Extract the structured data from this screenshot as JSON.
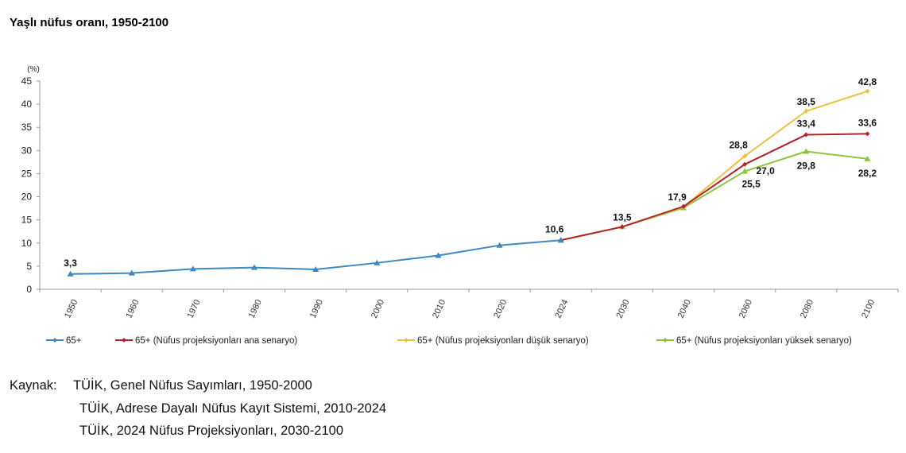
{
  "title": "Yaşlı nüfus oranı, 1950-2100",
  "chart_data": {
    "type": "line",
    "title": "Yaşlı nüfus oranı, 1950-2100",
    "ylabel": "(%)",
    "ylim": [
      0,
      45
    ],
    "yticks": [
      0,
      5,
      10,
      15,
      20,
      25,
      30,
      35,
      40,
      45
    ],
    "categories": [
      "1950",
      "1960",
      "1970",
      "1980",
      "1990",
      "2000",
      "2010",
      "2020",
      "2024",
      "2030",
      "2040",
      "2060",
      "2080",
      "2100"
    ],
    "grid": false,
    "legend_position": "bottom",
    "series": [
      {
        "name": "65+",
        "color": "#3d87c4",
        "marker": "triangle",
        "values": [
          3.3,
          3.5,
          4.4,
          4.7,
          4.3,
          5.7,
          7.3,
          9.5,
          10.6,
          null,
          null,
          null,
          null,
          null
        ],
        "labels": {
          "0": "3,3",
          "8": "10,6"
        }
      },
      {
        "name": "65+ (Nüfus projeksiyonları ana senaryo)",
        "color": "#b0242c",
        "marker": "diamond",
        "values": [
          null,
          null,
          null,
          null,
          null,
          null,
          null,
          null,
          10.6,
          13.5,
          17.9,
          27.0,
          33.4,
          33.6
        ],
        "labels": {
          "9": "13,5",
          "10": "17,9",
          "11": "27,0",
          "12": "33,4",
          "13": "33,6"
        }
      },
      {
        "name": "65+ (Nüfus projeksiyonları düşük senaryo)",
        "color": "#f2c040",
        "marker": "diamond",
        "values": [
          null,
          null,
          null,
          null,
          null,
          null,
          null,
          null,
          10.6,
          13.5,
          17.8,
          28.8,
          38.5,
          42.8
        ],
        "labels": {
          "11": "28,8",
          "12": "38,5",
          "13": "42,8"
        }
      },
      {
        "name": "65+ (Nüfus projeksiyonları yüksek senaryo)",
        "color": "#8cc43c",
        "marker": "triangle",
        "values": [
          null,
          null,
          null,
          null,
          null,
          null,
          null,
          null,
          10.6,
          13.5,
          17.6,
          25.5,
          29.8,
          28.2
        ],
        "labels": {
          "11": "25,5",
          "12": "29,8",
          "13": "28,2"
        }
      }
    ]
  },
  "source": {
    "label": "Kaynak:",
    "lines": [
      "TÜİK, Genel Nüfus Sayımları, 1950-2000",
      "TÜİK, Adrese Dayalı Nüfus Kayıt Sistemi, 2010-2024",
      "TÜİK, 2024 Nüfus Projeksiyonları, 2030-2100"
    ]
  }
}
